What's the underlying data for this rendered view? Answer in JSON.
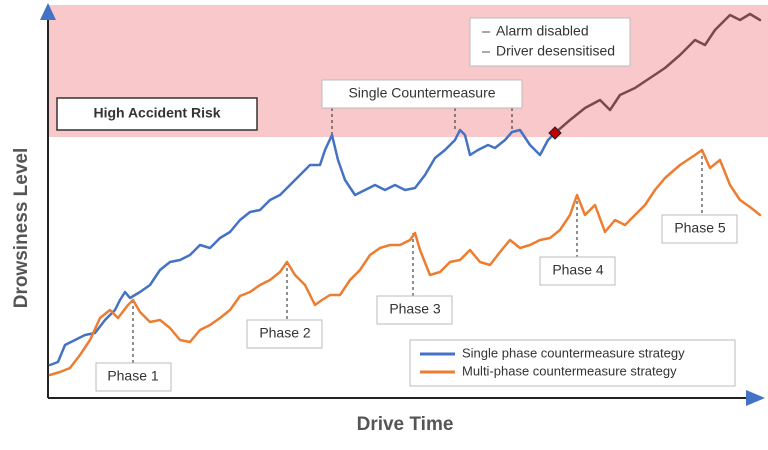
{
  "zone_label": "High Accident Risk",
  "callouts": {
    "single": "Single Countermeasure",
    "events": [
      "Alarm disabled",
      "Driver desensitised"
    ]
  },
  "phases": [
    "Phase 1",
    "Phase 2",
    "Phase 3",
    "Phase 4",
    "Phase 5"
  ],
  "legend": [
    "Single phase countermeasure strategy",
    "Multi-phase countermeasure strategy"
  ],
  "axes": {
    "y": "Drowsiness Level",
    "x": "Drive Time"
  }
}
